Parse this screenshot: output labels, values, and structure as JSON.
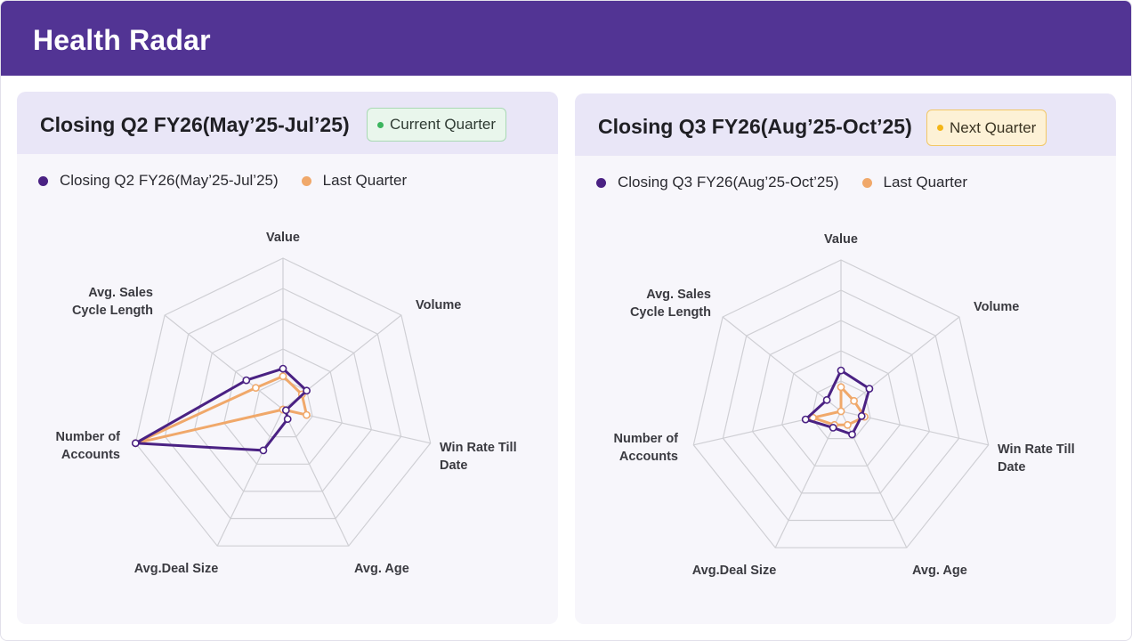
{
  "header": {
    "title": "Health Radar"
  },
  "colors": {
    "header_bg": "#523494",
    "current_series": "#4a2183",
    "last_series": "#f0a86a",
    "grid": "#cfcfd4"
  },
  "axis_labels": [
    [
      "Value"
    ],
    [
      "Volume"
    ],
    [
      "Win Rate Till",
      "Date"
    ],
    [
      "Avg. Age"
    ],
    [
      "Avg.Deal Size"
    ],
    [
      "Number of",
      "Accounts"
    ],
    [
      "Avg. Sales",
      "Cycle Length"
    ]
  ],
  "panels": [
    {
      "title": "Closing Q2 FY26(May’25-Jul’25)",
      "badge": {
        "label": "Current Quarter",
        "dot_color": "#3bb55e"
      },
      "legend": [
        {
          "label": "Closing Q2 FY26(May’25-Jul’25)",
          "color": "#4a2183"
        },
        {
          "label": "Last Quarter",
          "color": "#f0a86a"
        }
      ]
    },
    {
      "title": "Closing Q3 FY26(Aug’25-Oct’25)",
      "badge": {
        "label": "Next Quarter",
        "dot_color": "#f3b516"
      },
      "legend": [
        {
          "label": "Closing Q3 FY26(Aug’25-Oct’25)",
          "color": "#4a2183"
        },
        {
          "label": "Last Quarter",
          "color": "#f0a86a"
        }
      ]
    }
  ],
  "chart_data": [
    {
      "type": "radar",
      "categories": [
        "Value",
        "Volume",
        "Win Rate Till Date",
        "Avg. Age",
        "Avg.Deal Size",
        "Number of Accounts",
        "Avg. Sales Cycle Length"
      ],
      "rmax": 1,
      "rings": 5,
      "series": [
        {
          "name": "Closing Q2 FY26(May’25-Jul’25)",
          "values": [
            0.27,
            0.2,
            0.02,
            0.07,
            0.3,
            1.0,
            0.31
          ]
        },
        {
          "name": "Last Quarter",
          "values": [
            0.22,
            0.16,
            0.16,
            0.0,
            0.0,
            1.0,
            0.23
          ]
        }
      ]
    },
    {
      "type": "radar",
      "categories": [
        "Value",
        "Volume",
        "Win Rate Till Date",
        "Avg. Age",
        "Avg.Deal Size",
        "Number of Accounts",
        "Avg. Sales Cycle Length"
      ],
      "rmax": 1,
      "rings": 5,
      "series": [
        {
          "name": "Closing Q3 FY26(Aug’25-Oct’25)",
          "values": [
            0.27,
            0.24,
            0.14,
            0.17,
            0.12,
            0.24,
            0.12
          ]
        },
        {
          "name": "Last Quarter",
          "values": [
            0.16,
            0.11,
            0.16,
            0.1,
            0.1,
            0.19,
            0.0
          ]
        }
      ]
    }
  ]
}
